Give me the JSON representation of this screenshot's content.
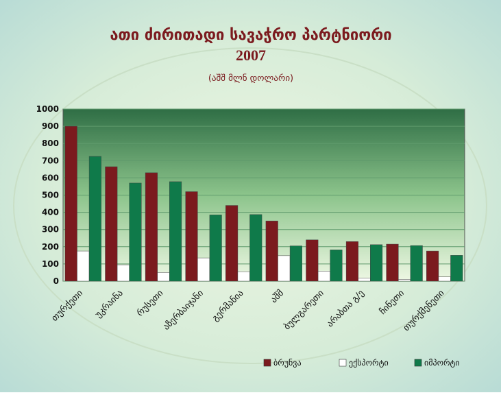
{
  "chart_data": {
    "type": "bar",
    "title": "ათი ძირითადი სავაჭრო პარტნიორი",
    "subtitle": "2007",
    "unit_label": "(აშშ მლნ დოლარი)",
    "categories": [
      "თურქეთი",
      "უკრაინა",
      "რუსეთი",
      "აზერბაიჯანი",
      "გერმანია",
      "აშშ",
      "ბულგარეთი",
      "არაბთა გ/ე",
      "ჩინეთი",
      "თურქმენეთი"
    ],
    "series": [
      {
        "name": "ბრუნვა",
        "color": "#7b1a1e",
        "values": [
          900,
          665,
          630,
          520,
          440,
          350,
          240,
          230,
          215,
          175
        ]
      },
      {
        "name": "ექსპორტი",
        "color": "#ffffff",
        "values": [
          175,
          95,
          50,
          135,
          55,
          148,
          58,
          18,
          10,
          25
        ]
      },
      {
        "name": "იმპორტი",
        "color": "#0f7a4a",
        "values": [
          725,
          570,
          578,
          385,
          387,
          205,
          182,
          212,
          207,
          150
        ]
      }
    ],
    "ylim": [
      0,
      1000
    ],
    "yticks": [
      0,
      100,
      200,
      300,
      400,
      500,
      600,
      700,
      800,
      900,
      1000
    ],
    "grid": true,
    "legend": "bottom-right"
  }
}
